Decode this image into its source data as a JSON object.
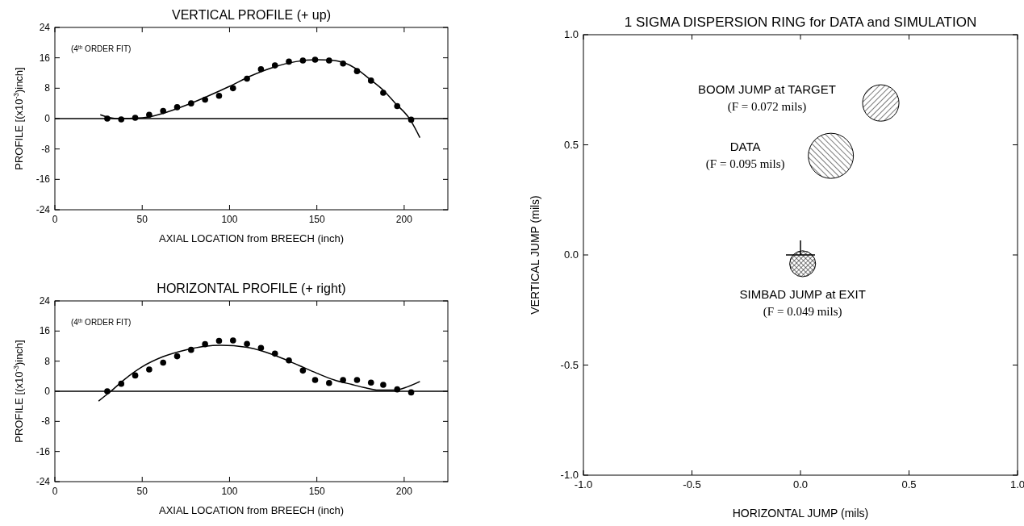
{
  "chart_data": [
    {
      "type": "scatter",
      "title": "VERTICAL PROFILE (+ up)",
      "xlabel": "AXIAL LOCATION from BREECH (inch)",
      "ylabel": "PROFILE [(x10$^{-3}$)inch]",
      "xlim": [
        0,
        225
      ],
      "ylim": [
        -24,
        24
      ],
      "xticks": [
        0,
        50,
        100,
        150,
        200
      ],
      "yticks": [
        -24,
        -16,
        -8,
        0,
        8,
        16,
        24
      ],
      "grid": false,
      "marker": "circle",
      "annotations": [
        "(4$^{th}$ ORDER FIT)"
      ],
      "ref_lines": [
        {
          "axis": "y",
          "value": 0,
          "color": "#000000"
        }
      ],
      "series": [
        {
          "color": "#000000",
          "x": [
            30,
            38,
            46,
            54,
            62,
            70,
            78,
            86,
            94,
            102,
            110,
            118,
            126,
            134,
            142,
            149,
            157,
            165,
            173,
            181,
            188,
            196,
            204
          ],
          "values": [
            0,
            -0.2,
            0.2,
            1,
            2,
            3,
            4,
            5,
            6,
            8,
            10.5,
            13,
            14,
            15,
            15.3,
            15.5,
            15.3,
            14.5,
            12.5,
            10,
            6.8,
            3.3,
            -0.3
          ]
        },
        {
          "type": "line",
          "color": "#000000",
          "marker": "none",
          "line_style": "solid",
          "x": [
            26,
            35,
            50,
            62,
            75,
            88,
            100,
            112,
            125,
            138,
            150,
            158,
            165,
            173,
            180,
            188,
            195,
            203,
            209
          ],
          "values": [
            1,
            0,
            0.2,
            1.4,
            3.5,
            6,
            8.5,
            11.2,
            13.5,
            15,
            15.5,
            15.4,
            14.8,
            13,
            10.5,
            7.5,
            4,
            0,
            -5
          ]
        }
      ]
    },
    {
      "type": "scatter",
      "title": "HORIZONTAL PROFILE (+ right)",
      "xlabel": "AXIAL LOCATION from BREECH (inch)",
      "ylabel": "PROFILE [(x10$^{-3}$)inch]",
      "xlim": [
        0,
        225
      ],
      "ylim": [
        -24,
        24
      ],
      "xticks": [
        0,
        50,
        100,
        150,
        200
      ],
      "yticks": [
        -24,
        -16,
        -8,
        0,
        8,
        16,
        24
      ],
      "grid": false,
      "marker": "circle",
      "annotations": [
        "(4$^{th}$ ORDER FIT)"
      ],
      "ref_lines": [
        {
          "axis": "y",
          "value": 0,
          "color": "#000000"
        }
      ],
      "series": [
        {
          "color": "#000000",
          "x": [
            30,
            38,
            46,
            54,
            62,
            70,
            78,
            86,
            94,
            102,
            110,
            118,
            126,
            134,
            142,
            149,
            157,
            165,
            173,
            181,
            188,
            196,
            204
          ],
          "values": [
            0,
            2,
            4.2,
            5.8,
            7.6,
            9.3,
            11,
            12.5,
            13.4,
            13.5,
            12.6,
            11.5,
            10,
            8.2,
            5.5,
            3,
            2.2,
            3,
            3,
            2.3,
            1.7,
            0.5,
            -0.3
          ]
        },
        {
          "type": "line",
          "color": "#000000",
          "marker": "none",
          "line_style": "solid",
          "x": [
            25,
            32,
            40,
            50,
            62,
            75,
            85,
            95,
            110,
            120,
            130,
            140,
            150,
            160,
            170,
            178,
            185,
            195,
            202,
            209
          ],
          "values": [
            -2.6,
            0,
            3.2,
            6.5,
            9.2,
            11,
            11.9,
            12.2,
            11.7,
            10.5,
            8.8,
            6.8,
            4.8,
            3,
            1.8,
            0.9,
            0.3,
            0.3,
            1.2,
            2.6
          ]
        }
      ]
    },
    {
      "type": "bubble",
      "title": "1 SIGMA DISPERSION RING for DATA and SIMULATION",
      "xlabel": "HORIZONTAL JUMP (mils)",
      "ylabel": "VERTICAL JUMP (mils)",
      "xlim": [
        -1,
        1
      ],
      "ylim": [
        -1,
        1
      ],
      "xticks": [
        {
          "value": -1,
          "label": "-1.0"
        },
        {
          "value": -0.5,
          "label": "-0.5"
        },
        {
          "value": 0,
          "label": "0.0"
        },
        {
          "value": 0.5,
          "label": "0.5"
        },
        {
          "value": 1,
          "label": "1.0"
        }
      ],
      "yticks": [
        {
          "value": -1,
          "label": "-1.0"
        },
        {
          "value": -0.5,
          "label": "-0.5"
        },
        {
          "value": 0,
          "label": "0.0"
        },
        {
          "value": 0.5,
          "label": "0.5"
        },
        {
          "value": 1,
          "label": "1.0"
        }
      ],
      "grid": false,
      "annotations": [
        "BOOM JUMP at TARGET",
        "(F = 0.072 mils)",
        "DATA",
        "(F = 0.095 mils)",
        "SIMBAD JUMP at EXIT",
        "(F = 0.049 mils)"
      ],
      "series": [
        {
          "color": "#000000",
          "x": [
            0.37
          ],
          "values": [
            0.69
          ],
          "sizes": [
            0.65
          ]
        },
        {
          "color": "#000000",
          "x": [
            0.14
          ],
          "values": [
            0.45
          ],
          "sizes": [
            1
          ]
        },
        {
          "color": "#000000",
          "x": [
            0.01
          ],
          "values": [
            -0.04
          ],
          "sizes": [
            0.33
          ]
        }
      ]
    }
  ]
}
